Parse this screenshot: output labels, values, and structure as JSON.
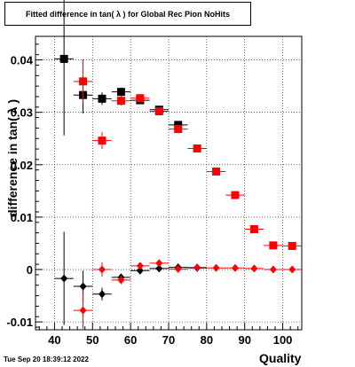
{
  "chart_data": {
    "type": "scatter",
    "title": "Fitted difference in tan( λ ) for Global Rec Pion NoHits",
    "xlabel": "Quality",
    "ylabel": "difference in tan( λ )",
    "xlim": [
      35,
      105
    ],
    "ylim": [
      -0.0115,
      0.0445
    ],
    "grid": true,
    "x_ticks": [
      40,
      50,
      60,
      70,
      80,
      90,
      100
    ],
    "y_ticks": [
      -0.01,
      0,
      0.01,
      0.02,
      0.03,
      0.04
    ],
    "x_tick_labels": [
      "40",
      "50",
      "60",
      "70",
      "80",
      "90",
      "100"
    ],
    "y_tick_labels": [
      "-0.01",
      "0",
      "0.01",
      "0.02",
      "0.03",
      "0.04"
    ],
    "series": [
      {
        "marker": "square",
        "color": "#000000",
        "points": [
          {
            "x": 42.5,
            "y": 0.0402,
            "yerr": 0.0146
          },
          {
            "x": 47.5,
            "y": 0.0333,
            "yerr": 0.0035
          },
          {
            "x": 52.5,
            "y": 0.0326,
            "yerr": 0.0012
          },
          {
            "x": 57.5,
            "y": 0.0339,
            "yerr": 0.0008
          },
          {
            "x": 62.5,
            "y": 0.0323,
            "yerr": 0.0005
          },
          {
            "x": 67.5,
            "y": 0.0305,
            "yerr": 0.0004
          },
          {
            "x": 72.5,
            "y": 0.0276,
            "yerr": 0.0003
          }
        ]
      },
      {
        "marker": "square",
        "color": "#ff0000",
        "points": [
          {
            "x": 47.5,
            "y": 0.0359,
            "yerr": 0.0042
          },
          {
            "x": 52.5,
            "y": 0.0246,
            "yerr": 0.0016
          },
          {
            "x": 57.5,
            "y": 0.0322,
            "yerr": 0.0009
          },
          {
            "x": 62.5,
            "y": 0.0327,
            "yerr": 0.0006
          },
          {
            "x": 67.5,
            "y": 0.0302,
            "yerr": 0.0004
          },
          {
            "x": 72.5,
            "y": 0.0268,
            "yerr": 0.0003
          },
          {
            "x": 77.5,
            "y": 0.0231,
            "yerr": 0.0003
          },
          {
            "x": 82.5,
            "y": 0.0187,
            "yerr": 0.0002
          },
          {
            "x": 87.5,
            "y": 0.0142,
            "yerr": 0.0002
          },
          {
            "x": 92.5,
            "y": 0.0077,
            "yerr": 0.0002
          },
          {
            "x": 97.5,
            "y": 0.0046,
            "yerr": 0.0002
          },
          {
            "x": 102.5,
            "y": 0.0045,
            "yerr": 0.0002
          }
        ]
      },
      {
        "marker": "diamond",
        "color": "#000000",
        "points": [
          {
            "x": 42.5,
            "y": -0.0017,
            "yerr": 0.0089
          },
          {
            "x": 47.5,
            "y": -0.0032,
            "yerr": 0.003
          },
          {
            "x": 52.5,
            "y": -0.0047,
            "yerr": 0.0012
          },
          {
            "x": 57.5,
            "y": -0.0015,
            "yerr": 0.0007
          },
          {
            "x": 62.5,
            "y": -0.0002,
            "yerr": 0.0004
          },
          {
            "x": 67.5,
            "y": 0.0002,
            "yerr": 0.0003
          },
          {
            "x": 72.5,
            "y": 0.0004,
            "yerr": 0.0003
          },
          {
            "x": 77.5,
            "y": 0.0003,
            "yerr": 0.0002
          }
        ]
      },
      {
        "marker": "diamond",
        "color": "#ff0000",
        "points": [
          {
            "x": 47.5,
            "y": -0.0078,
            "yerr": 0.0035
          },
          {
            "x": 52.5,
            "y": 0.0,
            "yerr": 0.0014
          },
          {
            "x": 57.5,
            "y": -0.002,
            "yerr": 0.0008
          },
          {
            "x": 62.5,
            "y": 0.0007,
            "yerr": 0.0005
          },
          {
            "x": 67.5,
            "y": 0.0012,
            "yerr": 0.0004
          },
          {
            "x": 72.5,
            "y": 0.0001,
            "yerr": 0.0003
          },
          {
            "x": 77.5,
            "y": 0.0004,
            "yerr": 0.0003
          },
          {
            "x": 82.5,
            "y": 0.0003,
            "yerr": 0.0002
          },
          {
            "x": 87.5,
            "y": 0.0003,
            "yerr": 0.0002
          },
          {
            "x": 92.5,
            "y": 0.0002,
            "yerr": 0.0002
          },
          {
            "x": 97.5,
            "y": 0.0,
            "yerr": 0.0002
          },
          {
            "x": 102.5,
            "y": 0.0,
            "yerr": 0.0002
          }
        ]
      }
    ]
  },
  "footer": {
    "date": "Tue Sep 20 18:39:12 2022"
  }
}
